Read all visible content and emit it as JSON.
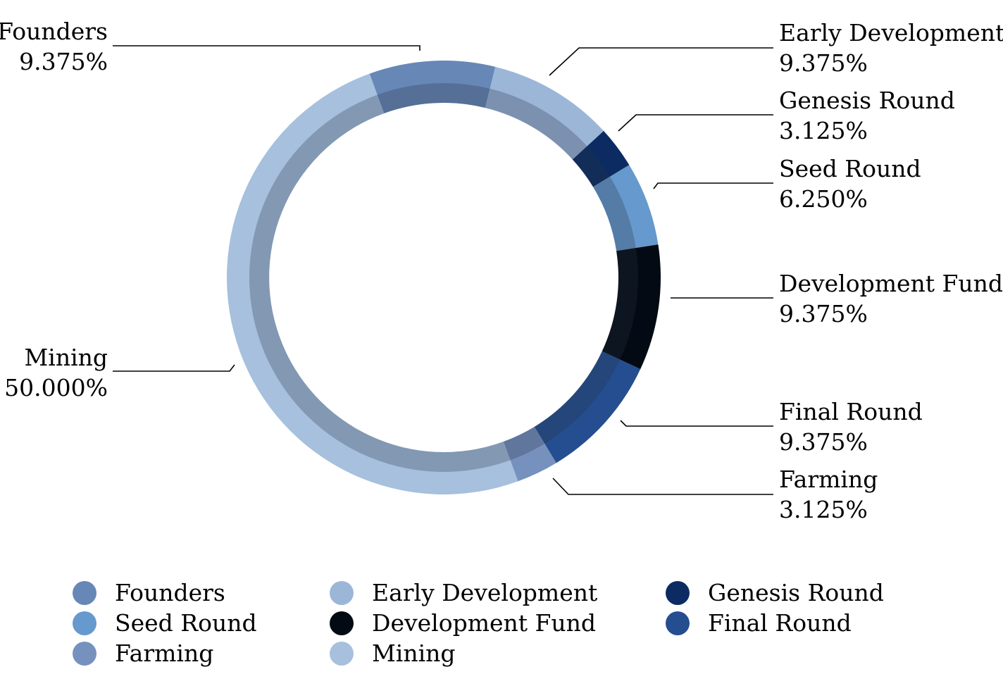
{
  "chart_data": {
    "type": "pie",
    "variant": "donut",
    "direction": "clockwise",
    "slices": [
      {
        "name": "Founders",
        "value": 9.375,
        "label": "9.375%",
        "color": "#6787b7"
      },
      {
        "name": "Early Development",
        "value": 9.375,
        "label": "9.375%",
        "color": "#9cb6d8"
      },
      {
        "name": "Genesis Round",
        "value": 3.125,
        "label": "3.125%",
        "color": "#0c2b62"
      },
      {
        "name": "Seed Round",
        "value": 6.25,
        "label": "6.250%",
        "color": "#6699cd"
      },
      {
        "name": "Development Fund",
        "value": 9.375,
        "label": "9.375%",
        "color": "#030a13"
      },
      {
        "name": "Final Round",
        "value": 9.375,
        "label": "9.375%",
        "color": "#244e8f"
      },
      {
        "name": "Farming",
        "value": 3.125,
        "label": "3.125%",
        "color": "#7791bf"
      },
      {
        "name": "Mining",
        "value": 50.0,
        "label": "50.000%",
        "color": "#a6c0de"
      }
    ],
    "legend": {
      "placement": "bottom",
      "entries": [
        "Founders",
        "Early Development",
        "Genesis Round",
        "Seed Round",
        "Development Fund",
        "Final Round",
        "Farming",
        "Mining"
      ]
    }
  }
}
